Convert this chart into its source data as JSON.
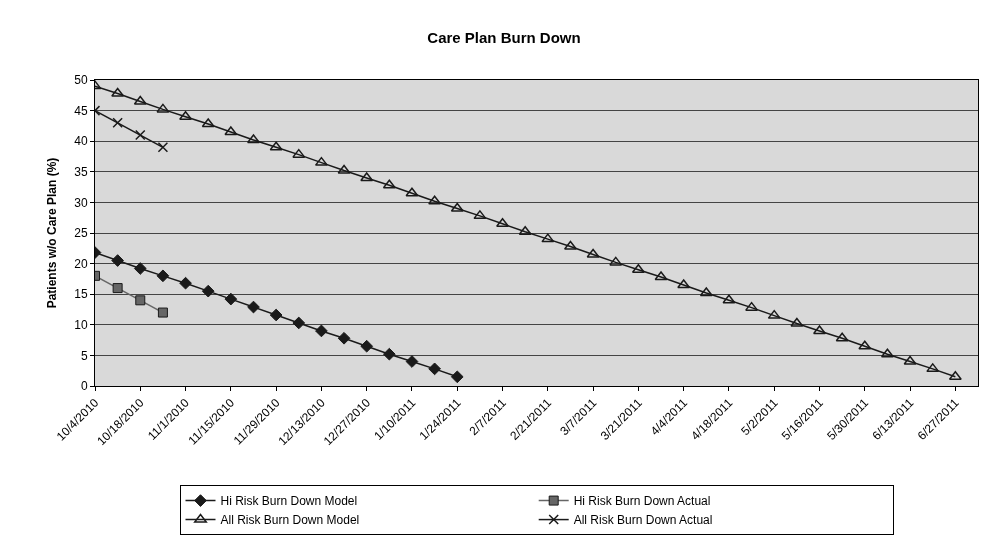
{
  "chart_data": {
    "type": "line",
    "title": "Care Plan Burn Down",
    "ylabel": "Patients w/o Care Plan (%)",
    "x": [
      "2010-10-04",
      "2010-10-11",
      "2010-10-18",
      "2010-10-25",
      "2010-11-01",
      "2010-11-08",
      "2010-11-15",
      "2010-11-22",
      "2010-11-29",
      "2010-12-06",
      "2010-12-13",
      "2010-12-20",
      "2010-12-27",
      "2011-01-03",
      "2011-01-10",
      "2011-01-17",
      "2011-01-24",
      "2011-01-31",
      "2011-02-07",
      "2011-02-14",
      "2011-02-21",
      "2011-02-28",
      "2011-03-07",
      "2011-03-14",
      "2011-03-21",
      "2011-03-28",
      "2011-04-04",
      "2011-04-11",
      "2011-04-18",
      "2011-04-25",
      "2011-05-02",
      "2011-05-09",
      "2011-05-16",
      "2011-05-23",
      "2011-05-30",
      "2011-06-06",
      "2011-06-13",
      "2011-06-20",
      "2011-06-27"
    ],
    "series": [
      {
        "name": "Hi Risk Burn Down Model",
        "color": "#1a1a1a",
        "marker": "diamond",
        "x": [
          "2010-10-04",
          "2010-10-11",
          "2010-10-18",
          "2010-10-25",
          "2010-11-01",
          "2010-11-08",
          "2010-11-15",
          "2010-11-22",
          "2010-11-29",
          "2010-12-06",
          "2010-12-13",
          "2010-12-20",
          "2010-12-27",
          "2011-01-03",
          "2011-01-10",
          "2011-01-17",
          "2011-01-24"
        ],
        "values": [
          21.8,
          20.5,
          19.2,
          18,
          16.8,
          15.5,
          14.2,
          12.9,
          11.6,
          10.3,
          9,
          7.8,
          6.5,
          5.2,
          4,
          2.8,
          1.5
        ]
      },
      {
        "name": "Hi Risk Burn Down Actual",
        "color": "#666666",
        "marker": "square",
        "x": [
          "2010-10-04",
          "2010-10-11",
          "2010-10-18",
          "2010-10-25"
        ],
        "values": [
          18,
          16,
          14,
          12
        ]
      },
      {
        "name": "All Risk Burn Down Model",
        "color": "#1a1a1a",
        "marker": "triangle",
        "values": [
          49,
          47.8,
          46.5,
          45.2,
          44,
          42.8,
          41.5,
          40.2,
          39,
          37.8,
          36.5,
          35.2,
          34,
          32.8,
          31.5,
          30.2,
          29,
          27.8,
          26.5,
          25.2,
          24,
          22.8,
          21.5,
          20.2,
          19,
          17.8,
          16.5,
          15.2,
          14,
          12.8,
          11.5,
          10.2,
          9,
          7.8,
          6.5,
          5.2,
          4,
          2.8,
          1.5
        ]
      },
      {
        "name": "All Risk Burn Down Actual",
        "color": "#1a1a1a",
        "marker": "cross",
        "x": [
          "2010-10-04",
          "2010-10-11",
          "2010-10-18",
          "2010-10-25"
        ],
        "values": [
          45,
          43,
          41,
          39
        ]
      }
    ],
    "xlim": [
      "2010-10-04",
      "2011-07-04"
    ],
    "xticks": [
      {
        "value": "2010-10-04",
        "label": "10/4/2010"
      },
      {
        "value": "2010-10-18",
        "label": "10/18/2010"
      },
      {
        "value": "2010-11-01",
        "label": "11/1/2010"
      },
      {
        "value": "2010-11-15",
        "label": "11/15/2010"
      },
      {
        "value": "2010-11-29",
        "label": "11/29/2010"
      },
      {
        "value": "2010-12-13",
        "label": "12/13/2010"
      },
      {
        "value": "2010-12-27",
        "label": "12/27/2010"
      },
      {
        "value": "2011-01-10",
        "label": "1/10/2011"
      },
      {
        "value": "2011-01-24",
        "label": "1/24/2011"
      },
      {
        "value": "2011-02-07",
        "label": "2/7/2011"
      },
      {
        "value": "2011-02-21",
        "label": "2/21/2011"
      },
      {
        "value": "2011-03-07",
        "label": "3/7/2011"
      },
      {
        "value": "2011-03-21",
        "label": "3/21/2011"
      },
      {
        "value": "2011-04-04",
        "label": "4/4/2011"
      },
      {
        "value": "2011-04-18",
        "label": "4/18/2011"
      },
      {
        "value": "2011-05-02",
        "label": "5/2/2011"
      },
      {
        "value": "2011-05-16",
        "label": "5/16/2011"
      },
      {
        "value": "2011-05-30",
        "label": "5/30/2011"
      },
      {
        "value": "2011-06-13",
        "label": "6/13/2011"
      },
      {
        "value": "2011-06-27",
        "label": "6/27/2011"
      }
    ],
    "ylim": [
      0,
      50
    ],
    "yticks": [
      0,
      5,
      10,
      15,
      20,
      25,
      30,
      35,
      40,
      45,
      50
    ],
    "grid": "y",
    "legend": "bottom",
    "line_style": "solid"
  }
}
